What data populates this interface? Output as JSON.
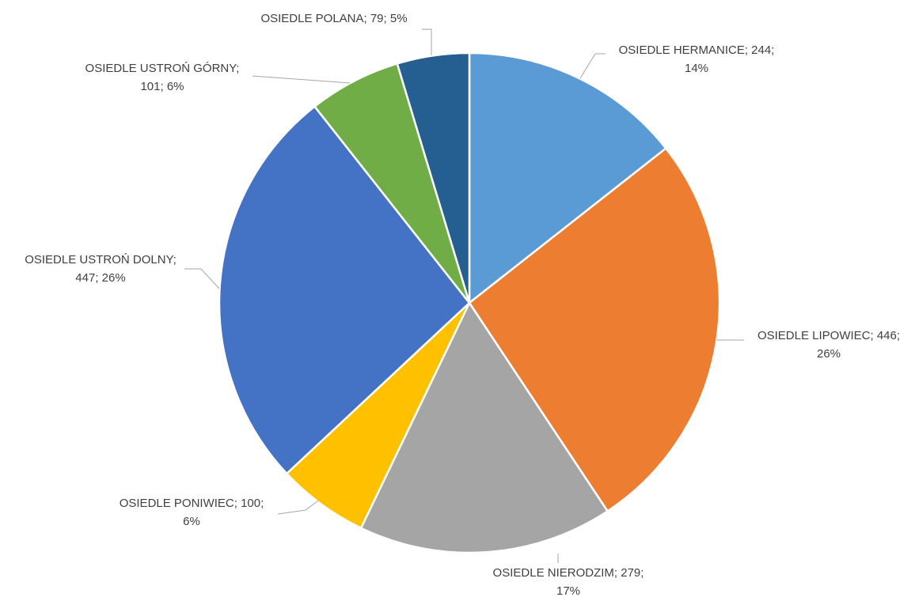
{
  "chart_data": {
    "type": "pie",
    "title": "",
    "slices": [
      {
        "label": "OSIEDLE HERMANICE",
        "value": 244,
        "percent": "14%",
        "color": "#5b9bd5",
        "line1": "OSIEDLE HERMANICE; 244;",
        "line2": "14%"
      },
      {
        "label": "OSIEDLE LIPOWIEC",
        "value": 446,
        "percent": "26%",
        "color": "#ed7d31",
        "line1": "OSIEDLE LIPOWIEC; 446;",
        "line2": "26%"
      },
      {
        "label": "OSIEDLE NIERODZIM",
        "value": 279,
        "percent": "17%",
        "color": "#a5a5a5",
        "line1": "OSIEDLE NIERODZIM; 279;",
        "line2": "17%"
      },
      {
        "label": "OSIEDLE PONIWIEC",
        "value": 100,
        "percent": "6%",
        "color": "#ffc000",
        "line1": "OSIEDLE PONIWIEC; 100;",
        "line2": "6%"
      },
      {
        "label": "OSIEDLE USTROŃ DOLNY",
        "value": 447,
        "percent": "26%",
        "color": "#4472c4",
        "line1": "OSIEDLE USTROŃ DOLNY;",
        "line2": "447; 26%"
      },
      {
        "label": "OSIEDLE USTROŃ GÓRNY",
        "value": 101,
        "percent": "6%",
        "color": "#70ad47",
        "line1": "OSIEDLE USTROŃ GÓRNY;",
        "line2": "101; 6%"
      },
      {
        "label": "OSIEDLE POLANA",
        "value": 79,
        "percent": "5%",
        "color": "#255e91",
        "line1": "OSIEDLE POLANA; 79; 5%",
        "line2": ""
      }
    ]
  }
}
